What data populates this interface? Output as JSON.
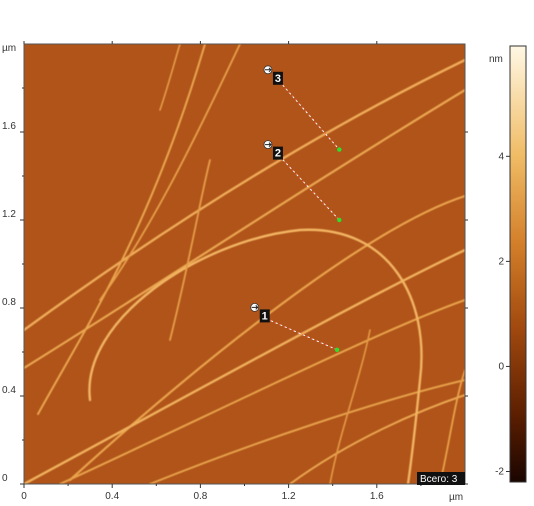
{
  "image": {
    "y_unit": "µm",
    "x_unit": "µm",
    "x_ticks": [
      "0",
      "0.4",
      "0.8",
      "1.2",
      "1.6"
    ],
    "y_ticks": [
      "0",
      "0.4",
      "0.8",
      "1.2",
      "1.6"
    ],
    "x_tick_values": [
      0,
      0.4,
      0.8,
      1.2,
      1.6
    ],
    "y_tick_values": [
      0,
      0.4,
      0.8,
      1.2,
      1.6
    ],
    "x_range": [
      0,
      2.0
    ],
    "y_range": [
      0,
      2.0
    ],
    "background_color": "#b0541a"
  },
  "colorbar": {
    "unit": "nm",
    "ticks": [
      "4",
      "2",
      "0",
      "-2"
    ],
    "tick_values": [
      4,
      2,
      0,
      -2
    ],
    "range": [
      -2.2,
      6.1
    ]
  },
  "markers": [
    {
      "label": "3",
      "x_um": 1.12,
      "y_um": 1.86,
      "end_x_um": 1.43,
      "end_y_um": 1.52
    },
    {
      "label": "2",
      "x_um": 1.12,
      "y_um": 1.52,
      "end_x_um": 1.43,
      "end_y_um": 1.2
    },
    {
      "label": "1",
      "x_um": 1.06,
      "y_um": 0.78,
      "end_x_um": 1.42,
      "end_y_um": 0.61
    }
  ],
  "total_badge": "Всего: 3"
}
